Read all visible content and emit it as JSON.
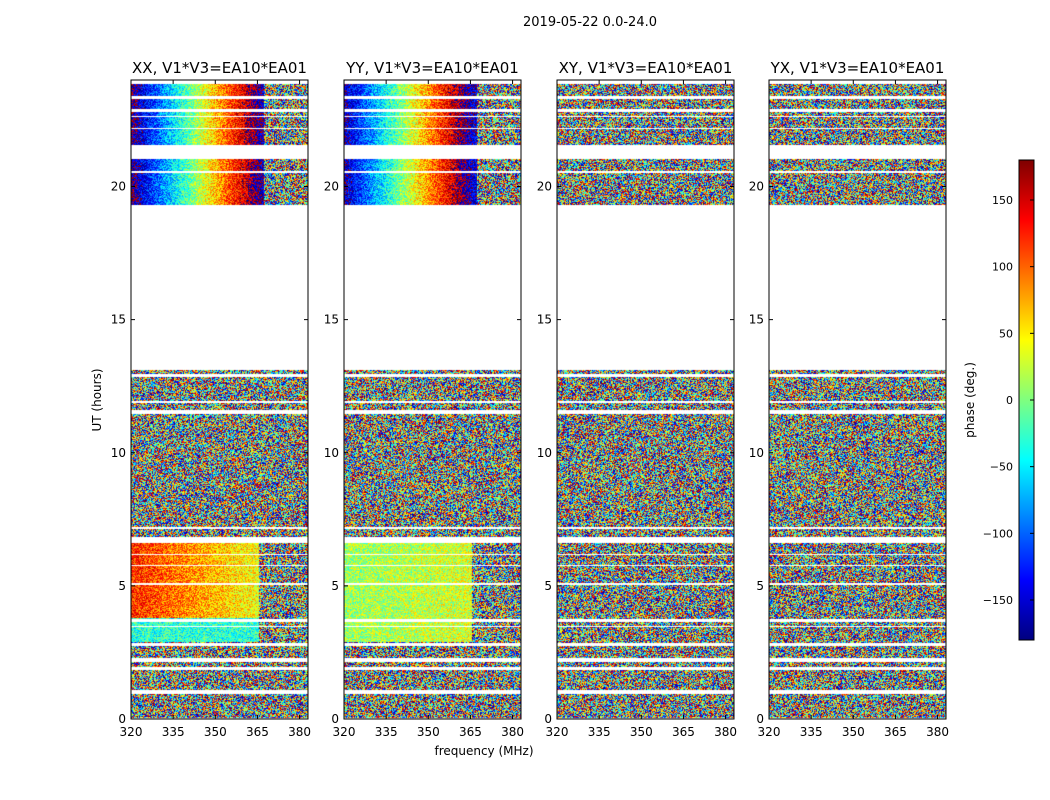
{
  "figure": {
    "suptitle": "2019-05-22 0.0-24.0"
  },
  "chart_data": {
    "type": "heatmap",
    "title": "2019-05-22 0.0-24.0",
    "xlabel": "frequency (MHz)",
    "ylabel": "UT (hours)",
    "xlim": [
      320,
      383
    ],
    "ylim": [
      0,
      24
    ],
    "x_ticks": [
      320,
      335,
      350,
      365,
      380
    ],
    "y_ticks": [
      0,
      5,
      10,
      15,
      20
    ],
    "panels": [
      {
        "name": "XX",
        "title": "XX, V1*V3=EA10*EA01",
        "coherent": true
      },
      {
        "name": "YY",
        "title": "YY, V1*V3=EA10*EA01",
        "coherent": true
      },
      {
        "name": "XY",
        "title": "XY, V1*V3=EA10*EA01",
        "coherent": false
      },
      {
        "name": "YX",
        "title": "YX, V1*V3=EA10*EA01",
        "coherent": false
      }
    ],
    "data_gaps_ut_hours": [
      [
        0.0,
        0.05
      ],
      [
        0.95,
        1.1
      ],
      [
        1.85,
        1.95
      ],
      [
        2.15,
        2.3
      ],
      [
        2.75,
        2.85
      ],
      [
        3.45,
        3.5
      ],
      [
        3.65,
        3.75
      ],
      [
        5.05,
        5.1
      ],
      [
        5.75,
        5.8
      ],
      [
        6.15,
        6.2
      ],
      [
        6.6,
        6.85
      ],
      [
        7.15,
        7.2
      ],
      [
        11.45,
        11.6
      ],
      [
        11.85,
        11.95
      ],
      [
        12.85,
        12.95
      ],
      [
        13.1,
        19.3
      ],
      [
        20.5,
        20.6
      ],
      [
        21.05,
        21.55
      ],
      [
        22.15,
        22.2
      ],
      [
        22.6,
        22.65
      ],
      [
        22.8,
        22.9
      ],
      [
        23.3,
        23.4
      ],
      [
        23.85,
        24.0
      ]
    ],
    "colorbar": {
      "label": "phase (deg.)",
      "range": [
        -180,
        180
      ],
      "ticks": [
        -150,
        -100,
        -50,
        0,
        50,
        100,
        150
      ],
      "tick_labels": [
        "−150",
        "−100",
        "−50",
        "0",
        "50",
        "100",
        "150"
      ],
      "colors": [
        "#00007f",
        "#0000ff",
        "#007fff",
        "#00ffff",
        "#7fff7f",
        "#ffff00",
        "#ff7f00",
        "#ff0000",
        "#7f0000"
      ]
    }
  }
}
